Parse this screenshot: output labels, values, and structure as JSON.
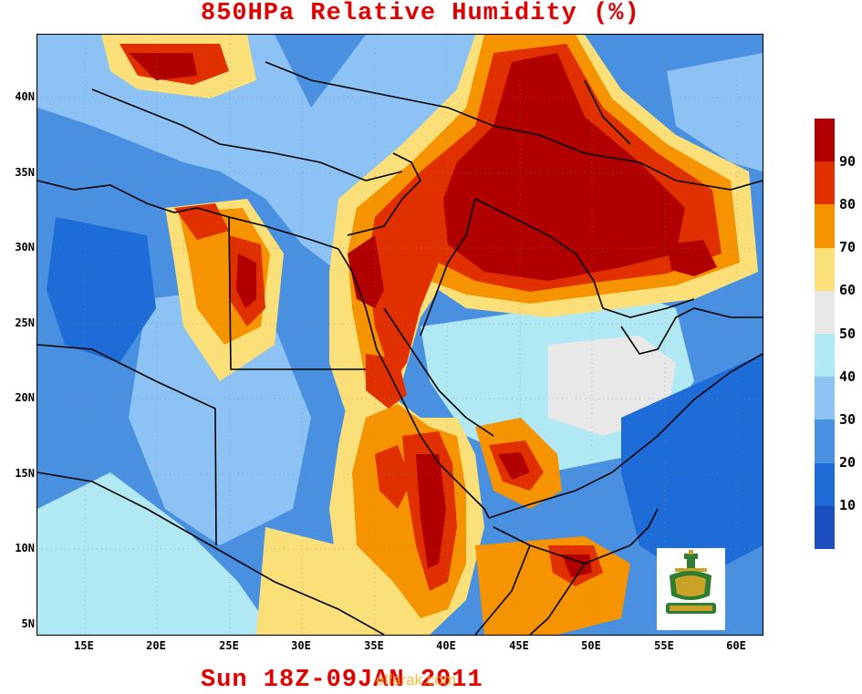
{
  "title": "850HPa Relative Humidity (%)",
  "footer": "Sun 18Z-09JAN 2011",
  "watermark": "elfarak.com",
  "y_axis_labels": [
    "40N",
    "35N",
    "30N",
    "25N",
    "20N",
    "15N",
    "10N",
    "5N"
  ],
  "x_axis_labels": [
    "15E",
    "20E",
    "25E",
    "30E",
    "35E",
    "40E",
    "45E",
    "50E",
    "55E",
    "60E"
  ],
  "legend": {
    "labels": [
      "90",
      "80",
      "70",
      "60",
      "50",
      "40",
      "30",
      "20",
      "10"
    ],
    "colors": [
      "#b00000",
      "#e03000",
      "#f59300",
      "#fbe07a",
      "#e8e8e8",
      "#b0e8f4",
      "#8cc2f4",
      "#4a90e0",
      "#1e6cd8",
      "#1c4fc0"
    ]
  },
  "map_colors": {
    "sea_base": "#4a90e0",
    "very_dry": "#1e6cd8",
    "dry": "#8cc2f4",
    "mid": "#b0e8f4",
    "neutral": "#e8e8e8",
    "moist": "#fbe07a",
    "wet": "#f59300",
    "very_wet": "#e03000",
    "saturated": "#b00000"
  },
  "logo": {
    "icon": "university-emblem-icon"
  }
}
